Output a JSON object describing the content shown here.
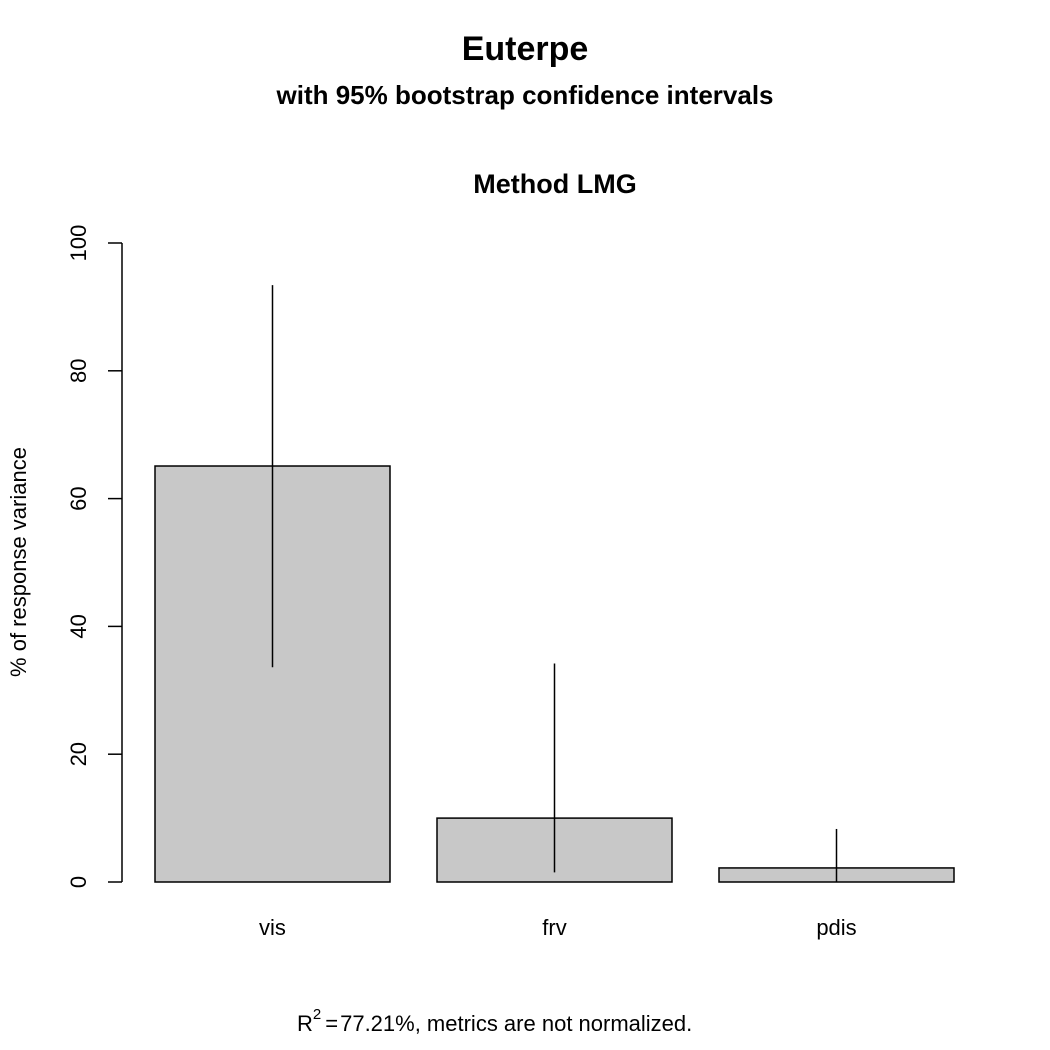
{
  "chart_data": {
    "type": "bar",
    "title": "Euterpe",
    "subtitle": "with 95% bootstrap confidence intervals",
    "plot_title": "Method LMG",
    "xlabel": "",
    "ylabel": "% of response variance",
    "categories": [
      "vis",
      "frv",
      "pdis"
    ],
    "values": [
      65.1,
      10.0,
      2.2
    ],
    "ci_lower": [
      33.6,
      1.5,
      0.0
    ],
    "ci_upper": [
      93.4,
      34.2,
      8.3
    ],
    "ylim": [
      0,
      100
    ],
    "yticks": [
      0,
      20,
      40,
      60,
      80,
      100
    ],
    "grid": false,
    "legend": "none",
    "footer": {
      "r_label": "R",
      "r_superscript": "2",
      "equals": "=",
      "text": "77.21%, metrics are not normalized."
    },
    "bar_color": "#c8c8c8"
  }
}
